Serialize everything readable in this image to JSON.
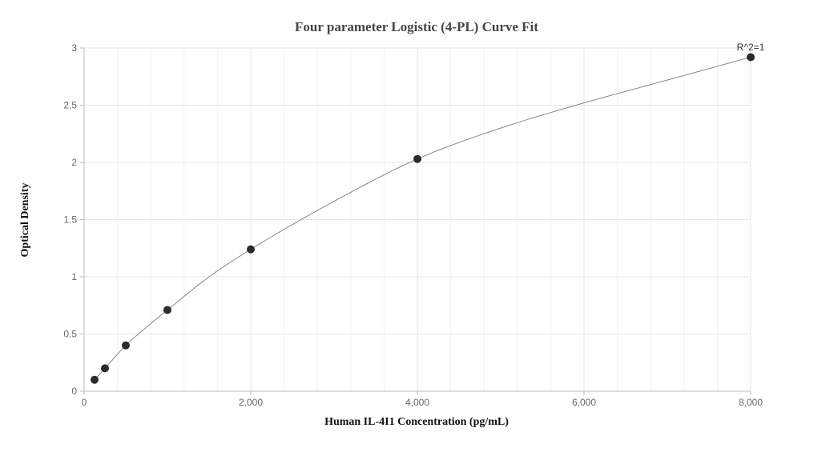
{
  "chart_data": {
    "type": "scatter",
    "title": "Four parameter Logistic (4-PL) Curve Fit",
    "xlabel": "Human IL-4I1 Concentration (pg/mL)",
    "ylabel": "Optical Density",
    "xlim": [
      0,
      8000
    ],
    "ylim": [
      0,
      3
    ],
    "x_ticks": [
      0,
      2000,
      4000,
      6000,
      8000
    ],
    "x_tick_labels": [
      "0",
      "2,000",
      "4,000",
      "6,000",
      "8,000"
    ],
    "y_ticks": [
      0,
      0.5,
      1,
      1.5,
      2,
      2.5,
      3
    ],
    "y_tick_labels": [
      "0",
      "0.5",
      "1",
      "1.5",
      "2",
      "2.5",
      "3"
    ],
    "grid": true,
    "series": [
      {
        "x": [
          125,
          250,
          500,
          1000,
          2000,
          4000,
          8000
        ],
        "y": [
          0.1,
          0.2,
          0.4,
          0.71,
          1.24,
          2.03,
          2.92
        ]
      }
    ],
    "fit_curve": {
      "type": "4PL",
      "x": [
        125,
        250,
        500,
        750,
        1000,
        1500,
        2000,
        3000,
        4000,
        5000,
        6000,
        7000,
        8000
      ],
      "y": [
        0.1,
        0.2,
        0.4,
        0.56,
        0.71,
        1.0,
        1.24,
        1.66,
        2.03,
        2.3,
        2.52,
        2.72,
        2.92
      ]
    },
    "annotation": "R^2=1",
    "colors": {
      "point": "#2b2b2b",
      "curve": "#888888",
      "grid": "#e6e6e6",
      "axis": "#bbbbbb"
    }
  }
}
